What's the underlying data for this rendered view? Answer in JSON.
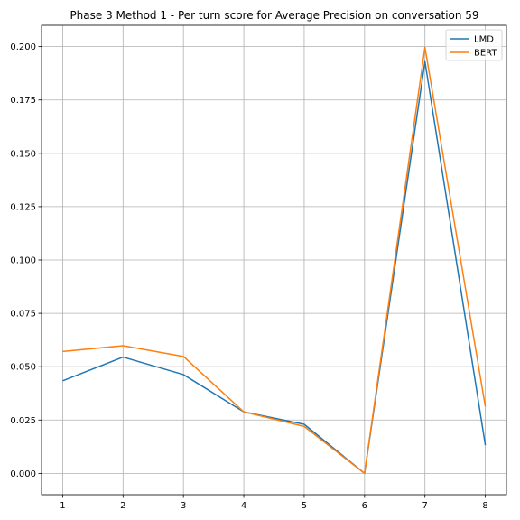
{
  "chart_data": {
    "type": "line",
    "title": "Phase 3 Method 1 - Per turn score for Average Precision on conversation 59",
    "xlabel": "",
    "ylabel": "",
    "x": [
      1,
      2,
      3,
      4,
      5,
      6,
      7,
      8
    ],
    "xlim": [
      0.65,
      8.35
    ],
    "ylim": [
      -0.01,
      0.21
    ],
    "xticks": [
      "1",
      "2",
      "3",
      "4",
      "5",
      "6",
      "7",
      "8"
    ],
    "yticks": [
      "0.000",
      "0.025",
      "0.050",
      "0.075",
      "0.100",
      "0.125",
      "0.150",
      "0.175",
      "0.200"
    ],
    "grid": true,
    "legend_position": "top-right",
    "series": [
      {
        "name": "LMD",
        "color": "#1f77b4",
        "values": [
          0.0434,
          0.0545,
          0.0463,
          0.0288,
          0.023,
          0.0,
          0.193,
          0.0132
        ]
      },
      {
        "name": "BERT",
        "color": "#ff7f0e",
        "values": [
          0.0571,
          0.0598,
          0.0548,
          0.0288,
          0.022,
          0.0,
          0.1997,
          0.0313
        ]
      }
    ]
  }
}
